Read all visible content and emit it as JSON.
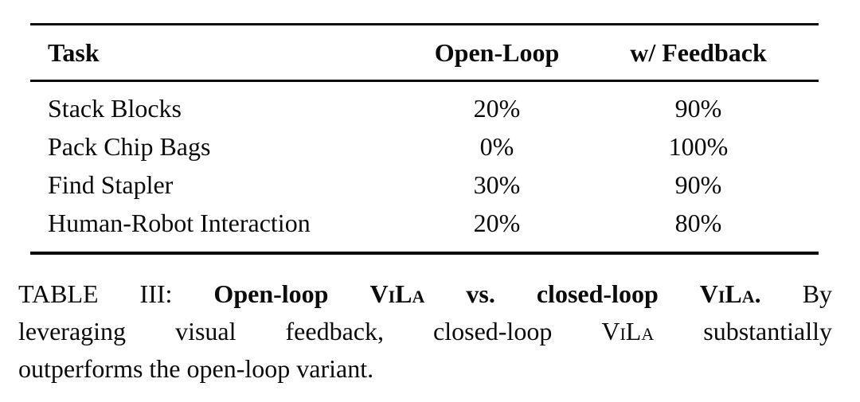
{
  "page": {
    "background": "#ffffff",
    "text_color": "#0b0b0b",
    "rule_color": "#0b0b0b"
  },
  "table": {
    "columns": [
      "Task",
      "Open-Loop",
      "w/ Feedback"
    ],
    "rows": [
      {
        "task": "Stack Blocks",
        "open_loop": "20%",
        "feedback": "90%"
      },
      {
        "task": "Pack Chip Bags",
        "open_loop": "0%",
        "feedback": "100%"
      },
      {
        "task": "Find Stapler",
        "open_loop": "30%",
        "feedback": "90%"
      },
      {
        "task": "Human-Robot Interaction",
        "open_loop": "20%",
        "feedback": "80%"
      }
    ]
  },
  "caption": {
    "label": "TABLE III:",
    "lines": [
      [
        {
          "text": "TABLE III: ",
          "style": "regular"
        },
        {
          "text": "Open-loop ",
          "style": "bold"
        },
        {
          "text": "ViLa",
          "style": "bold-smallcaps"
        },
        {
          "text": " vs. closed-loop ",
          "style": "bold"
        },
        {
          "text": "ViLa",
          "style": "bold-smallcaps"
        },
        {
          "text": ". ",
          "style": "bold"
        },
        {
          "text": "By",
          "style": "regular"
        }
      ],
      [
        {
          "text": "leveraging visual feedback, closed-loop ",
          "style": "regular"
        },
        {
          "text": "ViLa",
          "style": "smallcaps"
        },
        {
          "text": " substantially",
          "style": "regular"
        }
      ],
      [
        {
          "text": "outperforms the open-loop variant.",
          "style": "regular"
        }
      ]
    ]
  }
}
